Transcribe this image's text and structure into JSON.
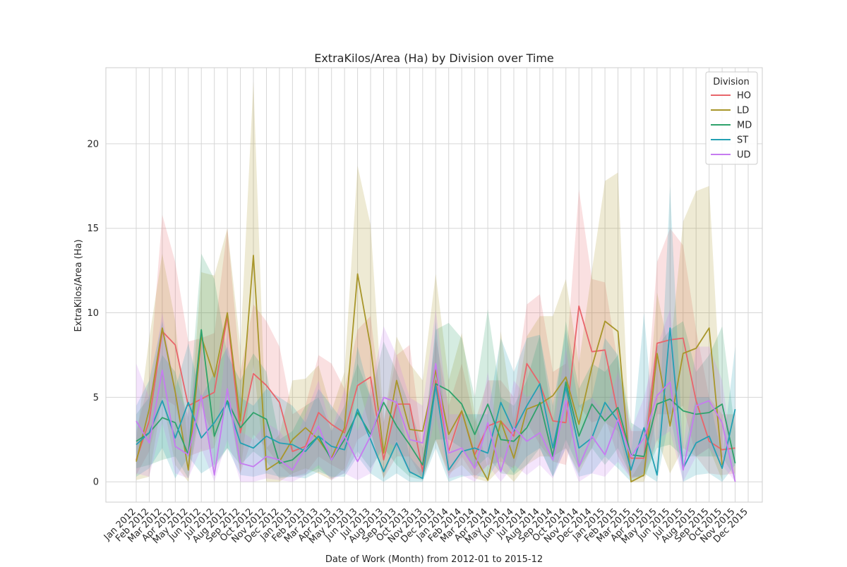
{
  "chart_data": {
    "type": "line",
    "title": "ExtraKilos/Area (Ha) by Division over Time",
    "xlabel": "Date of Work (Month) from 2012-01 to 2015-12",
    "ylabel": "ExtraKilos/Area (Ha)",
    "ylim": [
      -1.2,
      24.5
    ],
    "yticks": [
      0,
      5,
      10,
      15,
      20
    ],
    "grid": true,
    "legend_placement": "top-right",
    "legend_title": "Division",
    "categories": [
      "Jan 2012",
      "Feb 2012",
      "Mar 2012",
      "Apr 2012",
      "May 2012",
      "Jun 2012",
      "Jul 2012",
      "Aug 2012",
      "Sep 2012",
      "Oct 2012",
      "Nov 2012",
      "Dec 2012",
      "Jan 2013",
      "Feb 2013",
      "Mar 2013",
      "Apr 2013",
      "May 2013",
      "Jun 2013",
      "Jul 2013",
      "Aug 2013",
      "Sep 2013",
      "Oct 2013",
      "Nov 2013",
      "Dec 2013",
      "Jan 2014",
      "Feb 2014",
      "Mar 2014",
      "Apr 2014",
      "May 2014",
      "Jun 2014",
      "Jul 2014",
      "Aug 2014",
      "Sep 2014",
      "Oct 2014",
      "Nov 2014",
      "Dec 2014",
      "Jan 2015",
      "Feb 2015",
      "Mar 2015",
      "Apr 2015",
      "May 2015",
      "Jun 2015",
      "Jul 2015",
      "Aug 2015",
      "Sep 2015",
      "Oct 2015",
      "Nov 2015",
      "Dec 2015"
    ],
    "series": [
      {
        "name": "HO",
        "color": "#e8656b",
        "values": [
          1.3,
          3.6,
          8.9,
          8.1,
          4.5,
          4.9,
          5.3,
          9.8,
          2.9,
          6.4,
          5.7,
          4.7,
          1.8,
          2.1,
          4.1,
          3.4,
          2.9,
          5.7,
          6.2,
          1.3,
          4.6,
          4.6,
          0.6,
          6.0,
          1.8,
          4.2,
          1.6,
          3.3,
          3.6,
          2.7,
          7.0,
          5.8,
          3.6,
          3.5,
          10.4,
          7.7,
          7.8,
          4.0,
          1.4,
          1.4,
          8.2,
          8.4,
          8.5,
          4.8,
          2.4,
          1.9,
          2.0,
          null
        ],
        "lower": [
          0.4,
          1.8,
          5.0,
          4.5,
          1.5,
          1.8,
          2.0,
          5.0,
          0.5,
          2.8,
          2.0,
          1.0,
          0.3,
          0.5,
          1.5,
          1.0,
          0.6,
          2.5,
          3.0,
          0.2,
          1.5,
          1.5,
          0.1,
          2.5,
          0.3,
          1.5,
          0.3,
          1.0,
          1.2,
          0.8,
          3.5,
          2.2,
          1.2,
          1.0,
          4.5,
          3.5,
          3.8,
          1.5,
          0.2,
          0.3,
          4.0,
          4.0,
          4.5,
          1.5,
          0.5,
          0.4,
          0.5,
          null
        ],
        "upper": [
          3.0,
          6.0,
          15.8,
          13.0,
          8.3,
          8.5,
          8.8,
          15.0,
          6.5,
          10.5,
          9.5,
          8.0,
          4.0,
          4.5,
          7.5,
          7.0,
          5.5,
          9.0,
          9.8,
          3.5,
          7.5,
          8.1,
          2.0,
          8.5,
          4.5,
          7.0,
          3.5,
          6.0,
          6.0,
          5.0,
          10.5,
          11.1,
          6.5,
          7.0,
          17.3,
          12.0,
          11.8,
          7.0,
          3.0,
          3.0,
          13.0,
          15.0,
          14.0,
          9.0,
          5.0,
          4.0,
          4.0,
          null
        ]
      },
      {
        "name": "LD",
        "color": "#a8962a",
        "values": [
          1.2,
          4.3,
          9.1,
          5.3,
          0.7,
          8.6,
          6.2,
          10.0,
          3.6,
          13.4,
          0.7,
          1.2,
          2.5,
          3.2,
          2.5,
          1.4,
          3.2,
          12.3,
          8.0,
          1.7,
          6.0,
          3.1,
          3.0,
          6.6,
          2.8,
          4.2,
          1.5,
          0.1,
          3.6,
          1.4,
          4.3,
          4.6,
          5.1,
          6.2,
          3.4,
          6.8,
          9.5,
          8.9,
          0.0,
          0.4,
          7.6,
          3.3,
          7.6,
          7.9,
          9.1,
          1.0,
          null,
          null
        ],
        "lower": [
          0.1,
          0.3,
          5.0,
          1.0,
          0.0,
          4.5,
          2.5,
          5.5,
          0.5,
          7.0,
          0.0,
          0.0,
          0.5,
          0.8,
          0.5,
          0.1,
          0.8,
          6.0,
          3.0,
          0.2,
          2.5,
          0.5,
          0.3,
          2.5,
          0.5,
          1.0,
          0.2,
          0.0,
          0.8,
          0.0,
          1.0,
          1.5,
          1.5,
          2.0,
          0.5,
          2.0,
          3.5,
          3.0,
          0.0,
          0.0,
          2.5,
          0.5,
          2.0,
          1.5,
          2.0,
          0.1,
          null,
          null
        ],
        "upper": [
          2.5,
          8.5,
          13.5,
          9.5,
          2.0,
          12.4,
          12.2,
          15.0,
          8.0,
          23.7,
          2.0,
          2.8,
          6.0,
          6.1,
          6.9,
          4.2,
          6.5,
          18.7,
          15.2,
          3.5,
          8.6,
          7.0,
          6.0,
          12.3,
          6.0,
          8.8,
          4.0,
          0.8,
          8.9,
          3.5,
          8.6,
          9.8,
          9.8,
          12.0,
          7.0,
          12.5,
          17.8,
          18.3,
          0.2,
          1.5,
          11.2,
          7.5,
          15.4,
          17.2,
          17.5,
          3.5,
          null,
          null
        ]
      },
      {
        "name": "MD",
        "color": "#2fa26b",
        "values": [
          2.4,
          2.9,
          3.8,
          3.5,
          1.6,
          9.0,
          2.7,
          4.8,
          3.2,
          4.1,
          3.7,
          1.1,
          1.3,
          2.0,
          2.7,
          1.3,
          2.5,
          4.1,
          2.8,
          4.7,
          3.3,
          2.2,
          1.0,
          5.8,
          5.4,
          4.6,
          2.8,
          4.6,
          2.5,
          2.4,
          3.2,
          4.7,
          1.5,
          5.9,
          2.7,
          4.6,
          3.6,
          4.4,
          1.6,
          1.5,
          4.6,
          4.9,
          4.2,
          4.0,
          4.1,
          4.6,
          1.1,
          null
        ],
        "lower": [
          0.8,
          1.0,
          1.3,
          1.5,
          0.2,
          5.0,
          0.8,
          2.0,
          1.0,
          1.8,
          1.2,
          0.2,
          0.3,
          0.4,
          0.8,
          0.2,
          0.5,
          1.8,
          0.8,
          2.0,
          1.0,
          0.3,
          0.1,
          2.5,
          2.5,
          2.0,
          0.8,
          1.5,
          0.5,
          0.4,
          1.0,
          2.0,
          0.3,
          2.5,
          0.8,
          2.0,
          1.0,
          2.0,
          0.3,
          0.3,
          2.0,
          2.2,
          1.5,
          1.5,
          1.5,
          1.5,
          0.2,
          null
        ],
        "upper": [
          4.0,
          5.0,
          7.5,
          6.5,
          3.8,
          13.5,
          12.0,
          7.5,
          6.0,
          7.6,
          6.5,
          2.5,
          3.0,
          4.5,
          5.0,
          3.0,
          4.5,
          7.0,
          5.0,
          8.3,
          6.5,
          4.5,
          2.0,
          9.0,
          9.4,
          8.5,
          5.0,
          10.2,
          5.0,
          4.5,
          6.0,
          8.7,
          3.5,
          9.5,
          5.5,
          7.0,
          6.5,
          7.5,
          3.5,
          3.0,
          8.0,
          9.0,
          9.5,
          6.5,
          7.5,
          9.2,
          3.0,
          null
        ]
      },
      {
        "name": "ST",
        "color": "#23a0b3",
        "values": [
          2.2,
          2.9,
          4.8,
          2.6,
          4.7,
          2.6,
          3.5,
          4.7,
          2.3,
          2.0,
          2.7,
          2.3,
          2.2,
          1.8,
          2.7,
          2.1,
          1.9,
          4.3,
          2.5,
          0.6,
          2.3,
          0.6,
          0.2,
          5.7,
          0.7,
          1.8,
          2.0,
          1.7,
          4.7,
          3.0,
          4.5,
          5.8,
          2.0,
          5.6,
          2.0,
          2.6,
          4.7,
          3.6,
          0.7,
          3.2,
          0.4,
          9.1,
          0.8,
          2.3,
          2.7,
          0.8,
          4.3,
          null
        ],
        "lower": [
          0.3,
          0.8,
          2.0,
          0.2,
          1.5,
          0.5,
          1.0,
          2.0,
          0.4,
          0.3,
          0.5,
          0.3,
          0.3,
          0.2,
          0.6,
          0.3,
          0.3,
          1.5,
          0.5,
          0.0,
          0.5,
          0.0,
          0.0,
          2.0,
          0.0,
          0.3,
          0.4,
          0.2,
          1.5,
          0.5,
          1.5,
          2.0,
          0.3,
          2.0,
          0.3,
          0.5,
          1.5,
          0.8,
          0.0,
          0.5,
          0.0,
          4.0,
          0.0,
          0.4,
          0.5,
          0.0,
          1.0,
          null
        ],
        "upper": [
          4.5,
          6.0,
          9.5,
          5.5,
          8.2,
          5.0,
          6.5,
          8.0,
          5.0,
          4.5,
          5.5,
          5.0,
          4.5,
          3.5,
          5.5,
          4.5,
          3.5,
          8.0,
          5.0,
          1.5,
          5.0,
          1.5,
          0.6,
          9.5,
          1.5,
          4.0,
          4.0,
          4.0,
          8.5,
          6.5,
          8.5,
          8.7,
          4.5,
          9.0,
          4.5,
          5.0,
          8.5,
          7.5,
          1.5,
          10.0,
          1.0,
          17.5,
          1.5,
          5.0,
          5.0,
          1.5,
          8.0,
          null
        ]
      },
      {
        "name": "UD",
        "color": "#c67bf0",
        "values": [
          3.6,
          2.3,
          6.6,
          2.1,
          1.6,
          5.1,
          0.4,
          5.5,
          1.1,
          0.9,
          1.5,
          1.3,
          0.7,
          2.0,
          3.3,
          1.3,
          2.7,
          1.2,
          2.7,
          5.0,
          4.7,
          2.5,
          2.3,
          7.0,
          1.7,
          2.0,
          0.8,
          3.5,
          0.6,
          3.2,
          2.4,
          2.9,
          1.3,
          4.8,
          0.9,
          2.7,
          1.6,
          3.7,
          1.5,
          2.6,
          5.1,
          5.9,
          0.7,
          4.5,
          4.8,
          3.5,
          0.0,
          null
        ],
        "lower": [
          0.5,
          0.3,
          3.5,
          0.5,
          0.2,
          2.0,
          0.0,
          2.5,
          0.0,
          0.0,
          0.2,
          0.1,
          0.0,
          0.4,
          1.0,
          0.1,
          0.5,
          0.1,
          0.5,
          2.5,
          2.0,
          0.5,
          0.4,
          4.0,
          0.2,
          0.4,
          0.0,
          1.0,
          0.0,
          1.0,
          0.4,
          1.0,
          0.2,
          2.0,
          0.0,
          0.5,
          0.3,
          1.2,
          0.2,
          0.5,
          2.5,
          3.0,
          0.0,
          1.5,
          2.0,
          1.0,
          0.0,
          null
        ],
        "upper": [
          7.0,
          5.0,
          10.0,
          5.5,
          4.0,
          8.5,
          1.5,
          9.0,
          3.0,
          2.5,
          3.5,
          3.0,
          2.0,
          4.0,
          6.0,
          3.0,
          5.5,
          3.0,
          5.5,
          9.2,
          7.5,
          5.0,
          4.5,
          10.2,
          4.0,
          4.0,
          2.0,
          6.5,
          2.0,
          6.0,
          5.0,
          5.5,
          3.0,
          8.0,
          2.5,
          5.0,
          4.0,
          6.5,
          3.0,
          5.0,
          8.0,
          10.2,
          2.0,
          8.0,
          8.0,
          6.0,
          0.5,
          null
        ]
      }
    ]
  }
}
